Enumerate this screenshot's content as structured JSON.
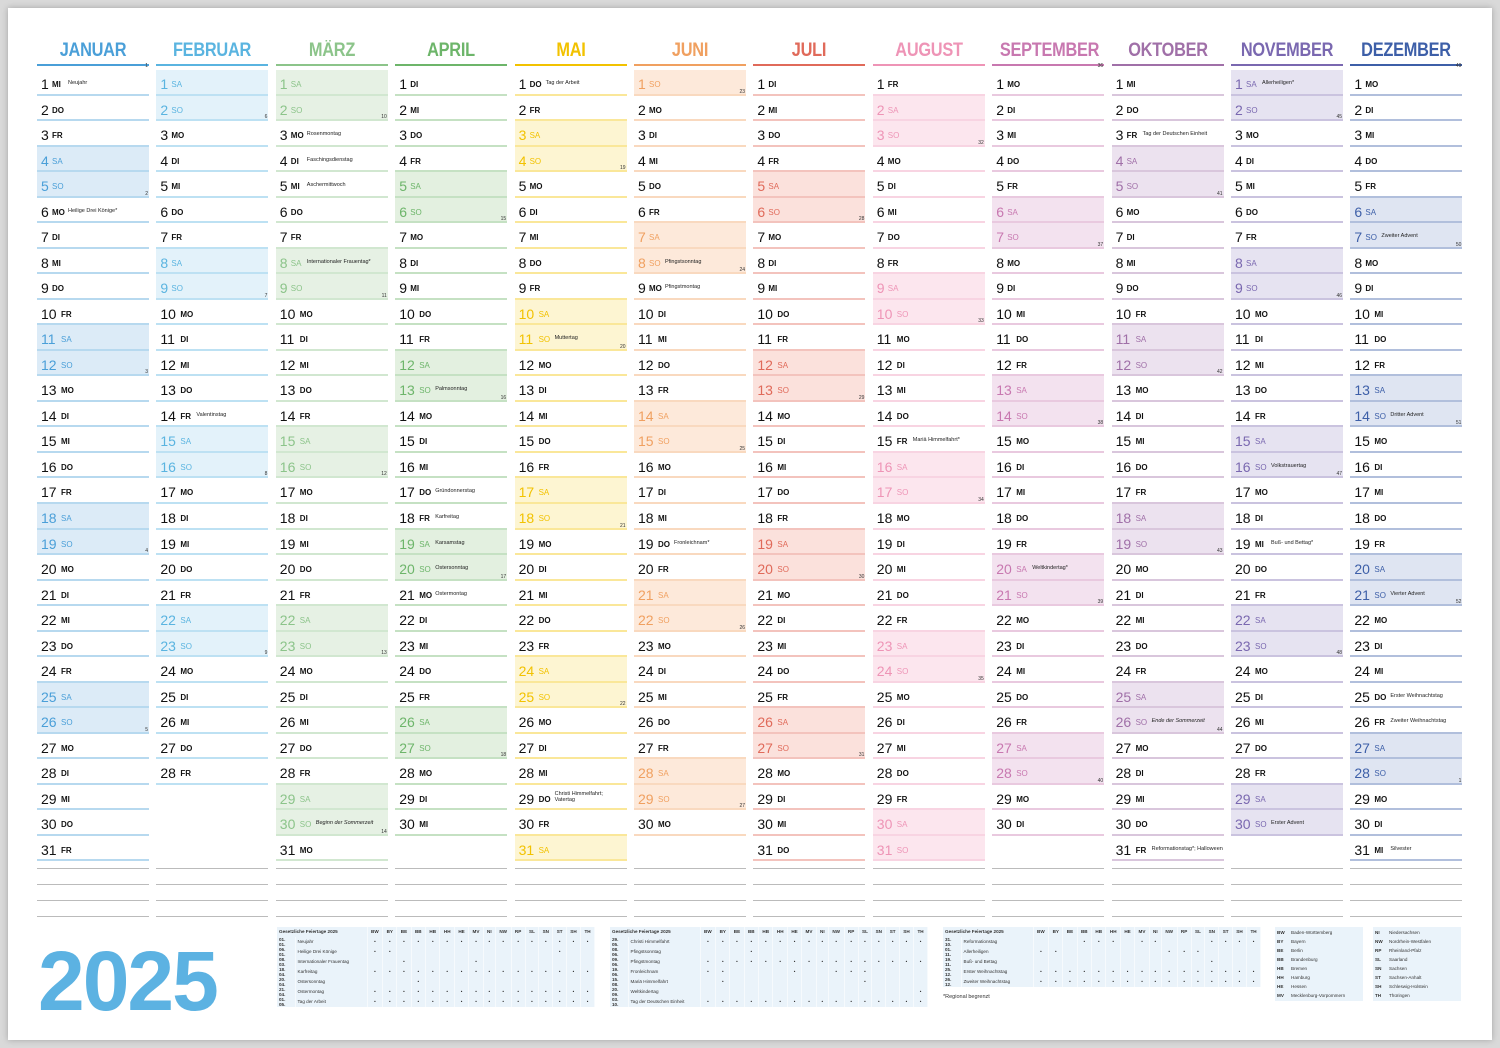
{
  "year": "2025",
  "day_numbers": [
    "1",
    "2",
    "3",
    "4",
    "5",
    "6",
    "7",
    "8",
    "9",
    "10",
    "11",
    "12",
    "13",
    "14",
    "15",
    "16",
    "17",
    "18",
    "19",
    "20",
    "21",
    "22",
    "23",
    "24",
    "25",
    "26",
    "27",
    "28",
    "29",
    "30",
    "31"
  ],
  "months": [
    {
      "name": "JANUAR",
      "color": "#4a9fd8",
      "tint": "#dcebf7",
      "weekdays": [
        "MI",
        "DO",
        "FR",
        "SA",
        "SO",
        "MO",
        "DI",
        "MI",
        "DO",
        "FR",
        "SA",
        "SO",
        "MO",
        "DI",
        "MI",
        "DO",
        "FR",
        "SA",
        "SO",
        "MO",
        "DI",
        "MI",
        "DO",
        "FR",
        "SA",
        "SO",
        "MO",
        "DI",
        "MI",
        "DO",
        "FR"
      ],
      "notes": {
        "1": "Neujahr",
        "6": "Heilige Drei Könige*"
      },
      "weeks": {
        "1": "1",
        "6": "2",
        "13": "3",
        "20": "4",
        "27": "5"
      }
    },
    {
      "name": "FEBRUAR",
      "color": "#5ab4e0",
      "tint": "#e3f2fa",
      "weekdays": [
        "SA",
        "SO",
        "MO",
        "DI",
        "MI",
        "DO",
        "FR",
        "SA",
        "SO",
        "MO",
        "DI",
        "MI",
        "DO",
        "FR",
        "SA",
        "SO",
        "MO",
        "DI",
        "MI",
        "DO",
        "FR",
        "SA",
        "SO",
        "MO",
        "DI",
        "MI",
        "DO",
        "FR"
      ],
      "notes": {
        "14": "Valentinstag"
      },
      "weeks": {
        "3": "6",
        "10": "7",
        "17": "8",
        "24": "9"
      }
    },
    {
      "name": "MÄRZ",
      "color": "#8cc48a",
      "tint": "#e6f1e4",
      "weekdays": [
        "SA",
        "SO",
        "MO",
        "DI",
        "MI",
        "DO",
        "FR",
        "SA",
        "SO",
        "MO",
        "DI",
        "MI",
        "DO",
        "FR",
        "SA",
        "SO",
        "MO",
        "DI",
        "MI",
        "DO",
        "FR",
        "SA",
        "SO",
        "MO",
        "DI",
        "MI",
        "DO",
        "FR",
        "SA",
        "SO",
        "MO"
      ],
      "notes": {
        "3": "Rosenmontag",
        "4": "Faschingsdienstag",
        "5": "Aschermittwoch",
        "8": "Internationaler Frauentag*",
        "30": "Beginn der Sommerzeit"
      },
      "weeks": {
        "3": "10",
        "10": "11",
        "17": "12",
        "24": "13",
        "31": "14"
      }
    },
    {
      "name": "APRIL",
      "color": "#6db56a",
      "tint": "#e3f0e0",
      "weekdays": [
        "DI",
        "MI",
        "DO",
        "FR",
        "SA",
        "SO",
        "MO",
        "DI",
        "MI",
        "DO",
        "FR",
        "SA",
        "SO",
        "MO",
        "DI",
        "MI",
        "DO",
        "FR",
        "SA",
        "SO",
        "MO",
        "DI",
        "MI",
        "DO",
        "FR",
        "SA",
        "SO",
        "MO",
        "DI",
        "MI"
      ],
      "notes": {
        "13": "Palmsonntag",
        "17": "Gründonnerstag",
        "18": "Karfreitag",
        "19": "Karsamstag",
        "20": "Ostersonntag",
        "21": "Ostermontag"
      },
      "weeks": {
        "7": "15",
        "14": "16",
        "21": "17",
        "28": "18"
      }
    },
    {
      "name": "MAI",
      "color": "#f2c200",
      "tint": "#fdf5d2",
      "weekdays": [
        "DO",
        "FR",
        "SA",
        "SO",
        "MO",
        "DI",
        "MI",
        "DO",
        "FR",
        "SA",
        "SO",
        "MO",
        "DI",
        "MI",
        "DO",
        "FR",
        "SA",
        "SO",
        "MO",
        "DI",
        "MI",
        "DO",
        "FR",
        "SA",
        "SO",
        "MO",
        "DI",
        "MI",
        "DO",
        "FR",
        "SA"
      ],
      "notes": {
        "1": "Tag der Arbeit",
        "11": "Muttertag",
        "29": "Christi Himmelfahrt;\nVatertag"
      },
      "weeks": {
        "5": "19",
        "12": "20",
        "19": "21",
        "26": "22"
      }
    },
    {
      "name": "JUNI",
      "color": "#f0a060",
      "tint": "#fde9da",
      "weekdays": [
        "SO",
        "MO",
        "DI",
        "MI",
        "DO",
        "FR",
        "SA",
        "SO",
        "MO",
        "DI",
        "MI",
        "DO",
        "FR",
        "SA",
        "SO",
        "MO",
        "DI",
        "MI",
        "DO",
        "FR",
        "SA",
        "SO",
        "MO",
        "DI",
        "MI",
        "DO",
        "FR",
        "SA",
        "SO",
        "MO"
      ],
      "notes": {
        "8": "Pfingstsonntag",
        "9": "Pfingstmontag",
        "19": "Fronleichnam*"
      },
      "weeks": {
        "2": "23",
        "9": "24",
        "16": "25",
        "23": "26",
        "30": "27"
      }
    },
    {
      "name": "JULI",
      "color": "#e06a5a",
      "tint": "#fbe1dc",
      "weekdays": [
        "DI",
        "MI",
        "DO",
        "FR",
        "SA",
        "SO",
        "MO",
        "DI",
        "MI",
        "DO",
        "FR",
        "SA",
        "SO",
        "MO",
        "DI",
        "MI",
        "DO",
        "FR",
        "SA",
        "SO",
        "MO",
        "DI",
        "MI",
        "DO",
        "FR",
        "SA",
        "SO",
        "MO",
        "DI",
        "MI",
        "DO"
      ],
      "notes": {},
      "weeks": {
        "7": "28",
        "14": "29",
        "21": "30",
        "28": "31"
      }
    },
    {
      "name": "AUGUST",
      "color": "#ee94b6",
      "tint": "#fce6ee",
      "weekdays": [
        "FR",
        "SA",
        "SO",
        "MO",
        "DI",
        "MI",
        "DO",
        "FR",
        "SA",
        "SO",
        "MO",
        "DI",
        "MI",
        "DO",
        "FR",
        "SA",
        "SO",
        "MO",
        "DI",
        "MI",
        "DO",
        "FR",
        "SA",
        "SO",
        "MO",
        "DI",
        "MI",
        "DO",
        "FR",
        "SA",
        "SO"
      ],
      "notes": {
        "15": "Mariä Himmelfahrt*"
      },
      "weeks": {
        "4": "32",
        "11": "33",
        "18": "34",
        "25": "35"
      }
    },
    {
      "name": "SEPTEMBER",
      "color": "#c878b0",
      "tint": "#f3e2ef",
      "weekdays": [
        "MO",
        "DI",
        "MI",
        "DO",
        "FR",
        "SA",
        "SO",
        "MO",
        "DI",
        "MI",
        "DO",
        "FR",
        "SA",
        "SO",
        "MO",
        "DI",
        "MI",
        "DO",
        "FR",
        "SA",
        "SO",
        "MO",
        "DI",
        "MI",
        "DO",
        "FR",
        "SA",
        "SO",
        "MO",
        "DI"
      ],
      "notes": {
        "20": "Weltkindertag*"
      },
      "weeks": {
        "1": "36",
        "8": "37",
        "15": "38",
        "22": "39",
        "29": "40"
      }
    },
    {
      "name": "OKTOBER",
      "color": "#a070a8",
      "tint": "#ece2ef",
      "weekdays": [
        "MI",
        "DO",
        "FR",
        "SA",
        "SO",
        "MO",
        "DI",
        "MI",
        "DO",
        "FR",
        "SA",
        "SO",
        "MO",
        "DI",
        "MI",
        "DO",
        "FR",
        "SA",
        "SO",
        "MO",
        "DI",
        "MI",
        "DO",
        "FR",
        "SA",
        "SO",
        "MO",
        "DI",
        "MI",
        "DO",
        "FR"
      ],
      "notes": {
        "3": "Tag der Deutschen Einheit",
        "26": "Ende der Sommerzeit",
        "31": "Reformationstag*; Halloween"
      },
      "weeks": {
        "6": "41",
        "13": "42",
        "20": "43",
        "27": "44"
      }
    },
    {
      "name": "NOVEMBER",
      "color": "#7a68b0",
      "tint": "#e6e3f1",
      "weekdays": [
        "SA",
        "SO",
        "MO",
        "DI",
        "MI",
        "DO",
        "FR",
        "SA",
        "SO",
        "MO",
        "DI",
        "MI",
        "DO",
        "FR",
        "SA",
        "SO",
        "MO",
        "DI",
        "MI",
        "DO",
        "FR",
        "SA",
        "SO",
        "MO",
        "DI",
        "MI",
        "DO",
        "FR",
        "SA",
        "SO"
      ],
      "notes": {
        "1": "Allerheiligen*",
        "16": "Volkstrauertag",
        "19": "Buß- und Bettag*",
        "30": "Erster Advent"
      },
      "weeks": {
        "3": "45",
        "10": "46",
        "17": "47",
        "24": "48"
      }
    },
    {
      "name": "DEZEMBER",
      "color": "#3d5fa8",
      "tint": "#dfe5f2",
      "weekdays": [
        "MO",
        "DI",
        "MI",
        "DO",
        "FR",
        "SA",
        "SO",
        "MO",
        "DI",
        "MI",
        "DO",
        "FR",
        "SA",
        "SO",
        "MO",
        "DI",
        "MI",
        "DO",
        "FR",
        "SA",
        "SO",
        "MO",
        "DI",
        "MI",
        "DO",
        "FR",
        "SA",
        "SO",
        "MO",
        "DI",
        "MI"
      ],
      "notes": {
        "7": "Zweiter Advent",
        "14": "Dritter Advent",
        "21": "Vierter Advent",
        "25": "Erster Weihnachtstag",
        "26": "Zweiter Weihnachtstag",
        "31": "Silvester"
      },
      "weeks": {
        "1": "49",
        "8": "50",
        "15": "51",
        "22": "52",
        "29": "1"
      }
    }
  ],
  "holiday_tables": {
    "title": "Gesetzliche Feiertage 2025",
    "states": [
      "BW",
      "BY",
      "BE",
      "BB",
      "HB",
      "HH",
      "HE",
      "MV",
      "NI",
      "NW",
      "RP",
      "SL",
      "SN",
      "ST",
      "SH",
      "TH"
    ],
    "tables": [
      [
        [
          "01. 01.",
          "Neujahr",
          "xxxxxxxxxxxxxxxx"
        ],
        [
          "06. 01.",
          "Heilige Drei Könige",
          "xx-----------x--"
        ],
        [
          "08. 03.",
          "Internationaler Frauentag",
          "--x----x--------"
        ],
        [
          "18. 04.",
          "Karfreitag",
          "xxxxxxxxxxxxxxxx"
        ],
        [
          "20. 04.",
          "Ostersonntag",
          "---x------------"
        ],
        [
          "21. 04.",
          "Ostermontag",
          "xxxxxxxxxxxxxxxx"
        ],
        [
          "01. 05.",
          "Tag der Arbeit",
          "xxxxxxxxxxxxxxxx"
        ]
      ],
      [
        [
          "29. 05.",
          "Christi Himmelfahrt",
          "xxxxxxxxxxxxxxxx"
        ],
        [
          "08. 06.",
          "Pfingstsonntag",
          "---x------------"
        ],
        [
          "09. 06.",
          "Pfingstmontag",
          "xxxxxxxxxxxxxxxx"
        ],
        [
          "19. 06.",
          "Fronleichnam",
          "xx----x--xxx----"
        ],
        [
          "15. 08.",
          "Mariä Himmelfahrt",
          "-x---------x----"
        ],
        [
          "20. 09.",
          "Weltkindertag",
          "---------------x"
        ],
        [
          "03. 10.",
          "Tag der Deutschen Einheit",
          "xxxxxxxxxxxxxxxx"
        ]
      ],
      [
        [
          "31. 10.",
          "Reformationstag",
          "---xxx-xx---xxxx"
        ],
        [
          "01. 11.",
          "Allerheiligen",
          "xx-------xxx----"
        ],
        [
          "19. 11.",
          "Buß- und Bettag",
          "------------x---"
        ],
        [
          "25. 12.",
          "Erster Weihnachtstag",
          "xxxxxxxxxxxxxxxx"
        ],
        [
          "26. 12.",
          "Zweiter Weihnachtstag",
          "xxxxxxxxxxxxxxxx"
        ]
      ]
    ],
    "footnote": "*Regional begrenzt",
    "state_names": [
      [
        [
          "BW",
          "Baden-Württemberg"
        ],
        [
          "BY",
          "Bayern"
        ],
        [
          "BE",
          "Berlin"
        ],
        [
          "BB",
          "Brandenburg"
        ],
        [
          "HB",
          "Bremen"
        ],
        [
          "HH",
          "Hamburg"
        ],
        [
          "HE",
          "Hessen"
        ],
        [
          "MV",
          "Mecklenburg-Vorpommern"
        ]
      ],
      [
        [
          "NI",
          "Niedersachsen"
        ],
        [
          "NW",
          "Nordrhein-Westfalen"
        ],
        [
          "RP",
          "Rheinland-Pfalz"
        ],
        [
          "SL",
          "Saarland"
        ],
        [
          "SN",
          "Sachsen"
        ],
        [
          "ST",
          "Sachsen-Anhalt"
        ],
        [
          "SH",
          "Schleswig-Holstein"
        ],
        [
          "TH",
          "Thüringen"
        ]
      ]
    ]
  }
}
